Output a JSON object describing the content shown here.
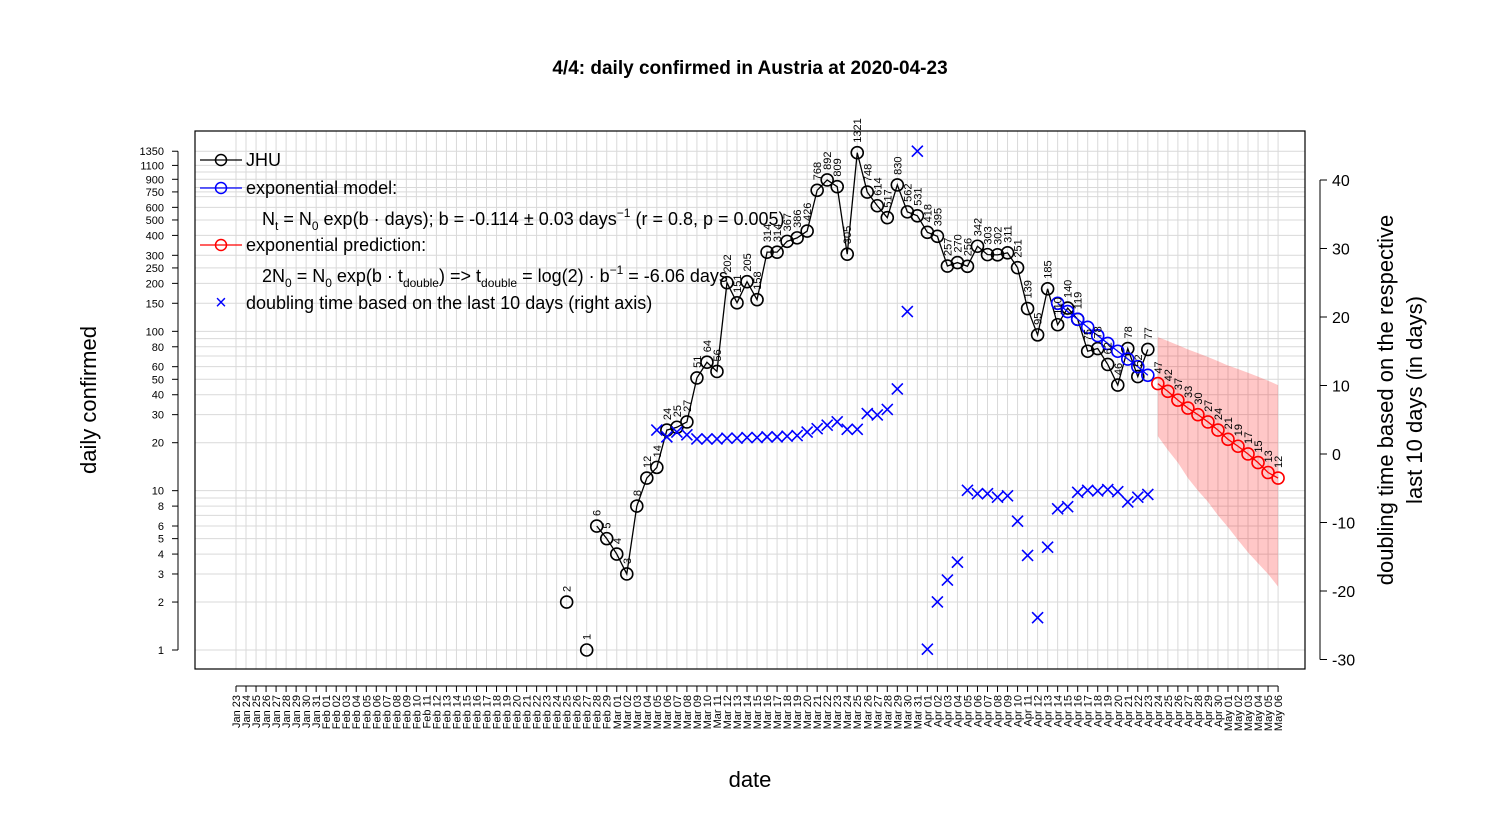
{
  "chart_data": {
    "type": "line",
    "title": "4/4: daily confirmed in Austria at 2020-04-23",
    "xlabel": "date",
    "ylabel": "daily confirmed",
    "y2label_line1": "doubling time based on the respective",
    "y2label_line2": "last 10 days (in days)",
    "y_scale": "log",
    "ylim": [
      0.8,
      1900
    ],
    "y_ticks": [
      1,
      2,
      3,
      4,
      5,
      6,
      8,
      10,
      20,
      30,
      40,
      50,
      60,
      80,
      100,
      150,
      200,
      250,
      300,
      400,
      500,
      600,
      750,
      900,
      1100,
      1350
    ],
    "y2lim": [
      -31,
      46
    ],
    "y2_ticks": [
      -30,
      -20,
      -10,
      0,
      10,
      20,
      30,
      40
    ],
    "x_ticks": [
      "Jan 23",
      "Jan 24",
      "Jan 25",
      "Jan 26",
      "Jan 27",
      "Jan 28",
      "Jan 29",
      "Jan 30",
      "Jan 31",
      "Feb 01",
      "Feb 02",
      "Feb 03",
      "Feb 04",
      "Feb 05",
      "Feb 06",
      "Feb 07",
      "Feb 08",
      "Feb 09",
      "Feb 10",
      "Feb 11",
      "Feb 12",
      "Feb 13",
      "Feb 14",
      "Feb 15",
      "Feb 16",
      "Feb 17",
      "Feb 18",
      "Feb 19",
      "Feb 20",
      "Feb 21",
      "Feb 22",
      "Feb 23",
      "Feb 24",
      "Feb 25",
      "Feb 26",
      "Feb 27",
      "Feb 28",
      "Feb 29",
      "Mar 01",
      "Mar 02",
      "Mar 03",
      "Mar 04",
      "Mar 05",
      "Mar 06",
      "Mar 07",
      "Mar 08",
      "Mar 09",
      "Mar 10",
      "Mar 11",
      "Mar 12",
      "Mar 13",
      "Mar 14",
      "Mar 15",
      "Mar 16",
      "Mar 17",
      "Mar 18",
      "Mar 19",
      "Mar 20",
      "Mar 21",
      "Mar 22",
      "Mar 23",
      "Mar 24",
      "Mar 25",
      "Mar 26",
      "Mar 27",
      "Mar 28",
      "Mar 29",
      "Mar 30",
      "Mar 31",
      "Apr 01",
      "Apr 02",
      "Apr 03",
      "Apr 04",
      "Apr 05",
      "Apr 06",
      "Apr 07",
      "Apr 08",
      "Apr 09",
      "Apr 10",
      "Apr 11",
      "Apr 12",
      "Apr 13",
      "Apr 14",
      "Apr 15",
      "Apr 16",
      "Apr 17",
      "Apr 18",
      "Apr 19",
      "Apr 20",
      "Apr 21",
      "Apr 22",
      "Apr 23",
      "Apr 24",
      "Apr 25",
      "Apr 26",
      "Apr 27",
      "Apr 28",
      "Apr 29",
      "Apr 30",
      "May 01",
      "May 02",
      "May 03",
      "May 04",
      "May 05",
      "May 06"
    ],
    "grid": true,
    "legend_position": "top-left",
    "legend": [
      {
        "label": "JHU",
        "color": "#000000",
        "symbol": "line-circle"
      },
      {
        "label": "exponential model:",
        "color": "#0000ff",
        "symbol": "line-circle"
      },
      {
        "label": "exponential prediction:",
        "color": "#ff0000",
        "symbol": "line-circle"
      },
      {
        "label": "doubling time based on the last  10  days (right axis)",
        "color": "#0000ff",
        "symbol": "cross"
      }
    ],
    "legend_formula_model": "Nt = N0 exp(b · days); b = -0.114 ± 0.03 days^-1 (r = 0.8, p = 0.005)",
    "legend_formula_prediction": "2N0 = N0 exp(b · tdouble) => tdouble = log(2) · b^-1 = -6.06 days",
    "series": [
      {
        "name": "JHU",
        "color": "#000000",
        "x": [
          "Feb 25",
          "Feb 27",
          "Feb 28",
          "Feb 29",
          "Mar 01",
          "Mar 02",
          "Mar 03",
          "Mar 04",
          "Mar 05",
          "Mar 06",
          "Mar 07",
          "Mar 08",
          "Mar 09",
          "Mar 10",
          "Mar 11",
          "Mar 12",
          "Mar 13",
          "Mar 14",
          "Mar 15",
          "Mar 16",
          "Mar 17",
          "Mar 18",
          "Mar 19",
          "Mar 20",
          "Mar 21",
          "Mar 22",
          "Mar 23",
          "Mar 24",
          "Mar 25",
          "Mar 26",
          "Mar 27",
          "Mar 28",
          "Mar 29",
          "Mar 30",
          "Mar 31",
          "Apr 01",
          "Apr 02",
          "Apr 03",
          "Apr 04",
          "Apr 05",
          "Apr 06",
          "Apr 07",
          "Apr 08",
          "Apr 09",
          "Apr 10",
          "Apr 11",
          "Apr 12",
          "Apr 13",
          "Apr 14",
          "Apr 15",
          "Apr 16",
          "Apr 17",
          "Apr 18",
          "Apr 19",
          "Apr 20",
          "Apr 21",
          "Apr 22",
          "Apr 23"
        ],
        "values": [
          2,
          1,
          6,
          5,
          4,
          3,
          8,
          12,
          14,
          24,
          25,
          27,
          51,
          64,
          56,
          202,
          151,
          205,
          158,
          314,
          314,
          367,
          386,
          426,
          768,
          892,
          809,
          305,
          1321,
          748,
          614,
          517,
          830,
          562,
          531,
          418,
          395,
          257,
          270,
          256,
          342,
          303,
          302,
          311,
          251,
          139,
          95,
          185,
          110,
          140,
          119,
          75,
          78,
          62,
          46,
          78,
          52,
          77
        ],
        "labels": [
          "2",
          "1",
          "6",
          "5",
          "4",
          "3",
          "8",
          "12",
          "14",
          "24",
          "25",
          "27",
          "51",
          "64",
          "56",
          "202",
          "151",
          "205",
          "158",
          "314",
          "314",
          "367",
          "386",
          "426",
          "768",
          "892",
          "809",
          "305",
          "1321",
          "748",
          "614",
          "517",
          "830",
          "562",
          "531",
          "418",
          "395",
          "257",
          "270",
          "256",
          "342",
          "303",
          "302",
          "311",
          "251",
          "139",
          "95",
          "185",
          "110",
          "140",
          "119",
          "75",
          "78",
          "62",
          "46",
          "78",
          "52",
          "77"
        ]
      },
      {
        "name": "exponential model",
        "color": "#0000ff",
        "x": [
          "Apr 14",
          "Apr 15",
          "Apr 16",
          "Apr 17",
          "Apr 18",
          "Apr 19",
          "Apr 20",
          "Apr 21",
          "Apr 22",
          "Apr 23"
        ],
        "values": [
          150,
          133,
          119,
          106,
          94,
          84,
          75,
          67,
          60,
          53
        ]
      },
      {
        "name": "exponential prediction",
        "color": "#ff0000",
        "x": [
          "Apr 24",
          "Apr 25",
          "Apr 26",
          "Apr 27",
          "Apr 28",
          "Apr 29",
          "Apr 30",
          "May 01",
          "May 02",
          "May 03",
          "May 04",
          "May 05",
          "May 06"
        ],
        "values": [
          47,
          42,
          37,
          33,
          30,
          27,
          24,
          21,
          19,
          17,
          15,
          13,
          12
        ],
        "labels": [
          "47",
          "42",
          "37",
          "33",
          "30",
          "27",
          "24",
          "21",
          "19",
          "17",
          "15",
          "13",
          "12"
        ],
        "band_upper": [
          92,
          87,
          82,
          77,
          73,
          69,
          65,
          61,
          58,
          55,
          52,
          49,
          46
        ],
        "band_lower": [
          22,
          18,
          15,
          12,
          10,
          8.5,
          7,
          5.9,
          4.9,
          4.1,
          3.5,
          3.0,
          2.5
        ]
      },
      {
        "name": "doubling time",
        "color": "#0000ff",
        "axis": "right",
        "x": [
          "Mar 05",
          "Mar 06",
          "Mar 07",
          "Mar 08",
          "Mar 09",
          "Mar 10",
          "Mar 11",
          "Mar 12",
          "Mar 13",
          "Mar 14",
          "Mar 15",
          "Mar 16",
          "Mar 17",
          "Mar 18",
          "Mar 19",
          "Mar 20",
          "Mar 21",
          "Mar 22",
          "Mar 23",
          "Mar 24",
          "Mar 25",
          "Mar 26",
          "Mar 27",
          "Mar 28",
          "Mar 29",
          "Mar 30",
          "Mar 31",
          "Apr 01",
          "Apr 02",
          "Apr 03",
          "Apr 04",
          "Apr 05",
          "Apr 06",
          "Apr 07",
          "Apr 08",
          "Apr 09",
          "Apr 10",
          "Apr 11",
          "Apr 12",
          "Apr 13",
          "Apr 14",
          "Apr 15",
          "Apr 16",
          "Apr 17",
          "Apr 18",
          "Apr 19",
          "Apr 20",
          "Apr 21",
          "Apr 22",
          "Apr 23"
        ],
        "values": [
          3.5,
          2.5,
          3.2,
          2.8,
          2.2,
          2.2,
          2.2,
          2.3,
          2.3,
          2.4,
          2.4,
          2.5,
          2.5,
          2.6,
          2.7,
          3.2,
          3.7,
          4.2,
          4.7,
          3.6,
          3.6,
          5.9,
          5.7,
          6.5,
          9.5,
          20.8,
          44.2,
          -28.5,
          -21.6,
          -18.4,
          -15.8,
          -5.3,
          -5.8,
          -5.8,
          -6.3,
          -6.1,
          -9.8,
          -14.8,
          -23.9,
          -13.6,
          -8.0,
          -7.7,
          -5.6,
          -5.3,
          -5.4,
          -5.2,
          -5.5,
          -7.0,
          -6.3,
          -5.9
        ]
      }
    ]
  }
}
